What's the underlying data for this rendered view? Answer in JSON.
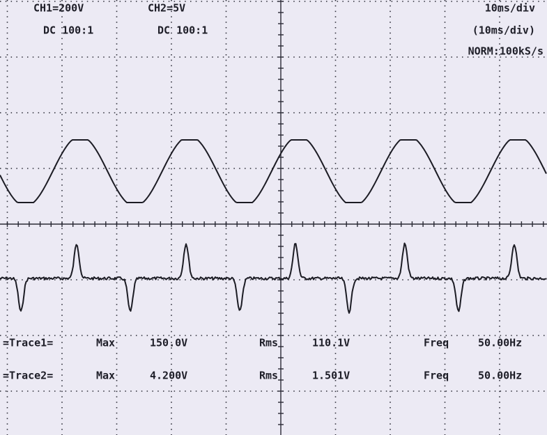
{
  "header": {
    "ch1": "CH1=200V",
    "ch1_coupling": "DC 100:1",
    "ch2": "CH2=5V",
    "ch2_coupling": "DC 100:1",
    "timebase": "10ms/div",
    "timebase_sub": "(10ms/div)",
    "mode": "NORM:100kS/s"
  },
  "measurements": [
    {
      "trace": "=Trace1=",
      "max_label": "Max",
      "max": "150.0V",
      "rms_label": "Rms",
      "rms": "110.1V",
      "freq_label": "Freq",
      "freq": "50.00Hz"
    },
    {
      "trace": "=Trace2=",
      "max_label": "Max",
      "max": "4.200V",
      "rms_label": "Rms",
      "rms": "1.501V",
      "freq_label": "Freq",
      "freq": "50.00Hz"
    }
  ]
}
